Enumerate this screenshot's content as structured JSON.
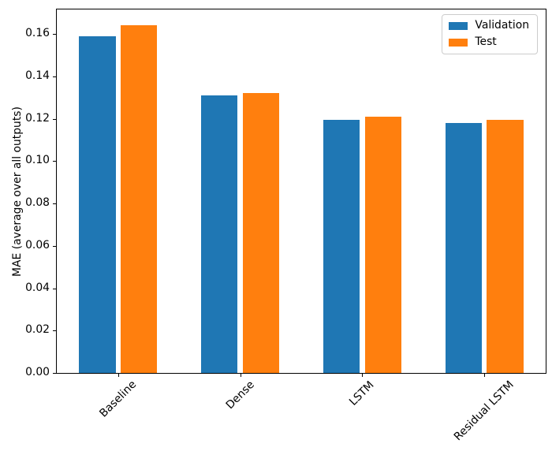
{
  "figure": {
    "background": "#ffffff",
    "axis_color": "#000000",
    "text_color": "#000000",
    "legend_border_color": "#cccccc"
  },
  "chart_data": {
    "type": "bar",
    "title": "",
    "xlabel": "",
    "ylabel": "MAE (average over all outputs)",
    "categories": [
      "Baseline",
      "Dense",
      "LSTM",
      "Residual LSTM"
    ],
    "series": [
      {
        "name": "Validation",
        "color": "#1f77b4",
        "values": [
          0.159,
          0.131,
          0.1195,
          0.118
        ]
      },
      {
        "name": "Test",
        "color": "#ff7f0e",
        "values": [
          0.164,
          0.132,
          0.121,
          0.1195
        ]
      }
    ],
    "ylim": [
      0,
      0.1716
    ],
    "xlim": [
      -0.502,
      3.502
    ],
    "yticks": [
      0.0,
      0.02,
      0.04,
      0.06,
      0.08,
      0.1,
      0.12,
      0.14,
      0.16
    ],
    "ytick_labels": [
      "0.00",
      "0.02",
      "0.04",
      "0.06",
      "0.08",
      "0.10",
      "0.12",
      "0.14",
      "0.16"
    ],
    "bar_width": 0.3,
    "bar_offsets": [
      -0.17,
      0.17
    ],
    "x_tick_rotation_deg": 45,
    "grid": false,
    "legend": {
      "position": "upper-right",
      "entries": [
        "Validation",
        "Test"
      ]
    }
  }
}
